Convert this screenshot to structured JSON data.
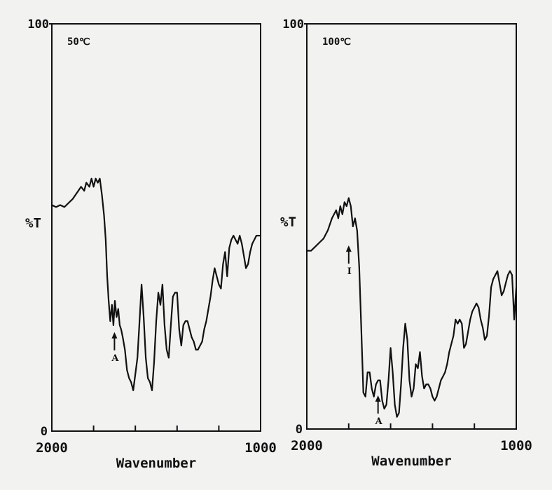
{
  "chart_data": [
    {
      "type": "line",
      "title": "",
      "xlabel": "Wavenumber",
      "ylabel": "%T",
      "annotation_temp": "50℃",
      "xlim": [
        2000,
        1000
      ],
      "ylim": [
        0,
        100
      ],
      "x_tick_labels": [
        "2000",
        "1000"
      ],
      "y_tick_labels": [
        "0",
        "100"
      ],
      "series": [
        {
          "x": [
            2000,
            1980,
            1960,
            1940,
            1920,
            1900,
            1880,
            1860,
            1845,
            1835,
            1820,
            1810,
            1800,
            1790,
            1780,
            1770,
            1760,
            1750,
            1742,
            1735,
            1728,
            1720,
            1712,
            1705,
            1698,
            1690,
            1682,
            1675,
            1668,
            1660,
            1650,
            1640,
            1630,
            1620,
            1610,
            1600,
            1590,
            1580,
            1570,
            1560,
            1550,
            1540,
            1530,
            1520,
            1510,
            1500,
            1490,
            1480,
            1470,
            1460,
            1450,
            1440,
            1430,
            1420,
            1410,
            1400,
            1390,
            1380,
            1370,
            1360,
            1350,
            1340,
            1330,
            1320,
            1310,
            1300,
            1290,
            1280,
            1270,
            1260,
            1250,
            1240,
            1230,
            1220,
            1210,
            1200,
            1190,
            1180,
            1170,
            1160,
            1150,
            1140,
            1130,
            1120,
            1110,
            1100,
            1090,
            1080,
            1070,
            1060,
            1050,
            1040,
            1030,
            1020,
            1010,
            1000
          ],
          "y": [
            55.5,
            55,
            55.5,
            55,
            56,
            57,
            58.5,
            60,
            59,
            61,
            60,
            62,
            60,
            62,
            61,
            62,
            58,
            53,
            47,
            38,
            32,
            27,
            31,
            26,
            32,
            28,
            30,
            26,
            25,
            23,
            20,
            15,
            13,
            12,
            10,
            14,
            18,
            27,
            36,
            28,
            18,
            13,
            12,
            10,
            17,
            27,
            34,
            31,
            36,
            26,
            20,
            18,
            26,
            33,
            34,
            34,
            25,
            21,
            26,
            27,
            27,
            25,
            23,
            22,
            20,
            20,
            21,
            22,
            25,
            27,
            30,
            33,
            37,
            40,
            38,
            36,
            35,
            41,
            44,
            38,
            45,
            47,
            48,
            47,
            46,
            48,
            46,
            43,
            40,
            41,
            44,
            46,
            47,
            48,
            48,
            48
          ]
        }
      ],
      "annotations": [
        {
          "label": "A",
          "x": 1700,
          "y": 25
        }
      ]
    },
    {
      "type": "line",
      "title": "",
      "xlabel": "Wavenumber",
      "ylabel": "%T",
      "annotation_temp": "100℃",
      "xlim": [
        2000,
        1000
      ],
      "ylim": [
        0,
        100
      ],
      "x_tick_labels": [
        "2000",
        "1000"
      ],
      "y_tick_labels": [
        "0",
        "100"
      ],
      "series": [
        {
          "x": [
            2000,
            1980,
            1960,
            1940,
            1920,
            1900,
            1880,
            1860,
            1850,
            1840,
            1830,
            1820,
            1810,
            1800,
            1790,
            1780,
            1770,
            1760,
            1750,
            1740,
            1730,
            1720,
            1710,
            1700,
            1690,
            1680,
            1670,
            1660,
            1650,
            1640,
            1630,
            1620,
            1610,
            1600,
            1590,
            1580,
            1570,
            1560,
            1550,
            1540,
            1530,
            1520,
            1510,
            1500,
            1490,
            1480,
            1470,
            1460,
            1450,
            1440,
            1430,
            1420,
            1410,
            1400,
            1390,
            1380,
            1370,
            1360,
            1350,
            1340,
            1330,
            1320,
            1310,
            1300,
            1290,
            1280,
            1270,
            1260,
            1250,
            1240,
            1230,
            1220,
            1210,
            1200,
            1190,
            1180,
            1170,
            1160,
            1150,
            1140,
            1130,
            1120,
            1110,
            1100,
            1090,
            1080,
            1070,
            1060,
            1050,
            1040,
            1030,
            1020,
            1010,
            1000
          ],
          "y": [
            44,
            44,
            45,
            46,
            47,
            49,
            52,
            54,
            52,
            55,
            53,
            56,
            55,
            57,
            55,
            50,
            52,
            49,
            40,
            25,
            9,
            8,
            14,
            14,
            10,
            8,
            11,
            12,
            12,
            7,
            5,
            6,
            12,
            20,
            14,
            6,
            3,
            4,
            11,
            20,
            26,
            22,
            12,
            8,
            10,
            16,
            15,
            19,
            13,
            10,
            11,
            11,
            10,
            8,
            7,
            8,
            10,
            12,
            13,
            14,
            16,
            19,
            21,
            23,
            27,
            26,
            27,
            26,
            20,
            21,
            24,
            27,
            29,
            30,
            31,
            30,
            27,
            25,
            22,
            23,
            28,
            35,
            37,
            38,
            39,
            36,
            33,
            34,
            36,
            38,
            39,
            38,
            27,
            35
          ]
        }
      ],
      "annotations": [
        {
          "label": "I",
          "x": 1800,
          "y": 46
        },
        {
          "label": "A",
          "x": 1660,
          "y": 9
        }
      ]
    }
  ]
}
